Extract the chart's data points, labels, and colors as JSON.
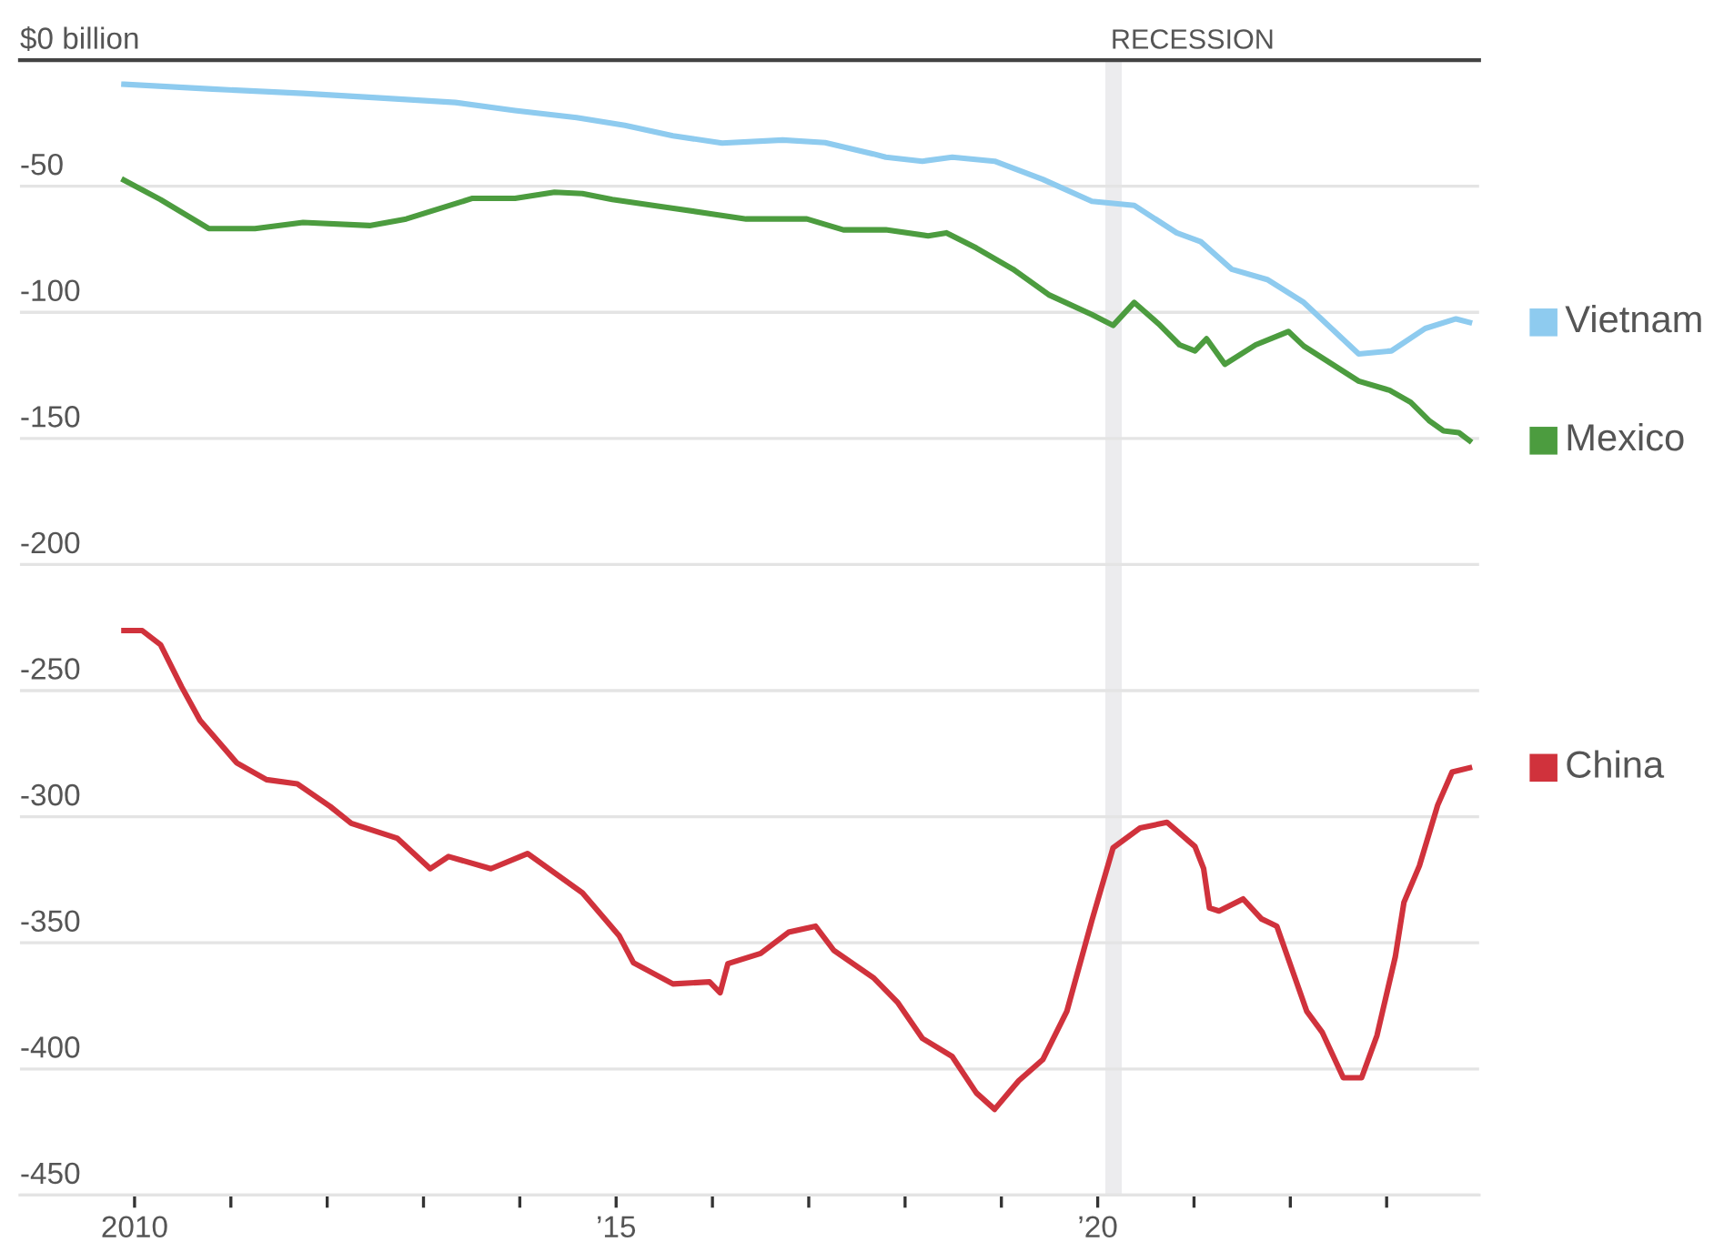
{
  "chart_data": {
    "type": "line",
    "series": [
      {
        "name": "Vietnam",
        "color": "#8ecbef",
        "x": [
          2009.89,
          2010.81,
          2011.75,
          2012.51,
          2013.33,
          2013.95,
          2014.59,
          2015.09,
          2015.59,
          2016.1,
          2016.73,
          2017.17,
          2017.67,
          2017.8,
          2018.18,
          2018.49,
          2018.93,
          2019.43,
          2019.94,
          2020.38,
          2020.82,
          2021.07,
          2021.39,
          2021.76,
          2022.14,
          2022.71,
          2023.05,
          2023.4,
          2023.72,
          2023.86
        ],
        "values": [
          -9.6,
          -11.5,
          -13.2,
          -14.9,
          -16.8,
          -20.0,
          -22.8,
          -25.9,
          -30.0,
          -32.9,
          -31.7,
          -32.7,
          -37.2,
          -38.5,
          -40.1,
          -38.5,
          -40.1,
          -47.3,
          -56.0,
          -57.6,
          -68.5,
          -72.0,
          -82.9,
          -87.0,
          -96.1,
          -116.5,
          -115.3,
          -106.4,
          -102.6,
          -104.0
        ]
      },
      {
        "name": "Mexico",
        "color": "#4c9c3f",
        "x": [
          2009.89,
          2010.27,
          2010.77,
          2011.25,
          2011.75,
          2012.44,
          2012.82,
          2013.51,
          2013.95,
          2014.36,
          2014.65,
          2014.96,
          2015.53,
          2016.03,
          2016.35,
          2016.98,
          2017.36,
          2017.8,
          2018.24,
          2018.43,
          2018.74,
          2019.12,
          2019.5,
          2019.94,
          2020.16,
          2020.38,
          2020.63,
          2020.85,
          2021.01,
          2021.13,
          2021.32,
          2021.64,
          2021.98,
          2022.14,
          2022.71,
          2023.03,
          2023.25,
          2023.44,
          2023.59,
          2023.75,
          2023.86
        ],
        "values": [
          -47.6,
          -55.3,
          -66.8,
          -66.8,
          -64.4,
          -65.6,
          -63.0,
          -54.8,
          -54.8,
          -52.4,
          -52.9,
          -55.3,
          -58.4,
          -61.2,
          -63.0,
          -63.0,
          -67.3,
          -67.3,
          -69.7,
          -68.5,
          -74.5,
          -82.9,
          -93.2,
          -100.9,
          -105.2,
          -96.1,
          -104.5,
          -112.9,
          -115.3,
          -110.5,
          -120.6,
          -112.9,
          -107.6,
          -113.4,
          -127.3,
          -130.9,
          -135.7,
          -142.9,
          -147.0,
          -147.7,
          -150.9
        ]
      },
      {
        "name": "China",
        "color": "#d0323c",
        "x": [
          2009.89,
          2010.08,
          2010.27,
          2010.49,
          2010.68,
          2011.06,
          2011.37,
          2011.69,
          2012.03,
          2012.25,
          2012.73,
          2013.07,
          2013.26,
          2013.7,
          2014.08,
          2014.65,
          2015.03,
          2015.18,
          2015.59,
          2015.97,
          2016.08,
          2016.16,
          2016.5,
          2016.79,
          2017.07,
          2017.26,
          2017.67,
          2017.92,
          2018.18,
          2018.49,
          2018.74,
          2018.93,
          2019.18,
          2019.43,
          2019.68,
          2019.94,
          2020.16,
          2020.44,
          2020.72,
          2021.01,
          2021.1,
          2021.16,
          2021.26,
          2021.51,
          2021.7,
          2021.86,
          2022.17,
          2022.33,
          2022.55,
          2022.74,
          2022.9,
          2023.09,
          2023.18,
          2023.34,
          2023.53,
          2023.68,
          2023.86
        ],
        "values": [
          -226.2,
          -226.2,
          -231.8,
          -248.6,
          -261.8,
          -278.6,
          -285.3,
          -287.0,
          -295.9,
          -302.6,
          -308.6,
          -320.6,
          -315.8,
          -320.6,
          -314.6,
          -330.2,
          -347.1,
          -357.9,
          -366.3,
          -365.5,
          -369.8,
          -358.3,
          -354.2,
          -345.8,
          -343.4,
          -353.0,
          -363.8,
          -373.5,
          -387.9,
          -395.1,
          -409.5,
          -416.0,
          -404.7,
          -396.3,
          -377.1,
          -341.1,
          -312.3,
          -304.5,
          -302.2,
          -311.8,
          -320.6,
          -336.2,
          -337.4,
          -332.6,
          -340.5,
          -343.4,
          -377.1,
          -385.4,
          -403.5,
          -403.5,
          -386.7,
          -355.5,
          -333.9,
          -319.5,
          -295.4,
          -282.3,
          -280.6
        ]
      }
    ],
    "xlim": [
      2008.81,
      2023.96
    ],
    "xticks": [
      {
        "value": 2010,
        "label": "2010"
      },
      {
        "value": 2011,
        "label": null
      },
      {
        "value": 2012,
        "label": null
      },
      {
        "value": 2013,
        "label": null
      },
      {
        "value": 2014,
        "label": null
      },
      {
        "value": 2015,
        "label": "’15"
      },
      {
        "value": 2016,
        "label": null
      },
      {
        "value": 2017,
        "label": null
      },
      {
        "value": 2018,
        "label": null
      },
      {
        "value": 2019,
        "label": null
      },
      {
        "value": 2020,
        "label": "’20"
      },
      {
        "value": 2021,
        "label": null
      },
      {
        "value": 2022,
        "label": null
      },
      {
        "value": 2023,
        "label": null
      }
    ],
    "ylim": [
      -450,
      0
    ],
    "yticks": [
      {
        "value": 0,
        "label": "$0 billion"
      },
      -50,
      -100,
      -150,
      -200,
      -250,
      -300,
      -350,
      -400,
      -450
    ],
    "bands": [
      {
        "axis": "x",
        "from": 2020.08,
        "to": 2020.25,
        "label": "RECESSION",
        "color": "#ececee"
      }
    ],
    "grid": "y",
    "legend": "right",
    "line_style": "solid",
    "marker": "none"
  }
}
